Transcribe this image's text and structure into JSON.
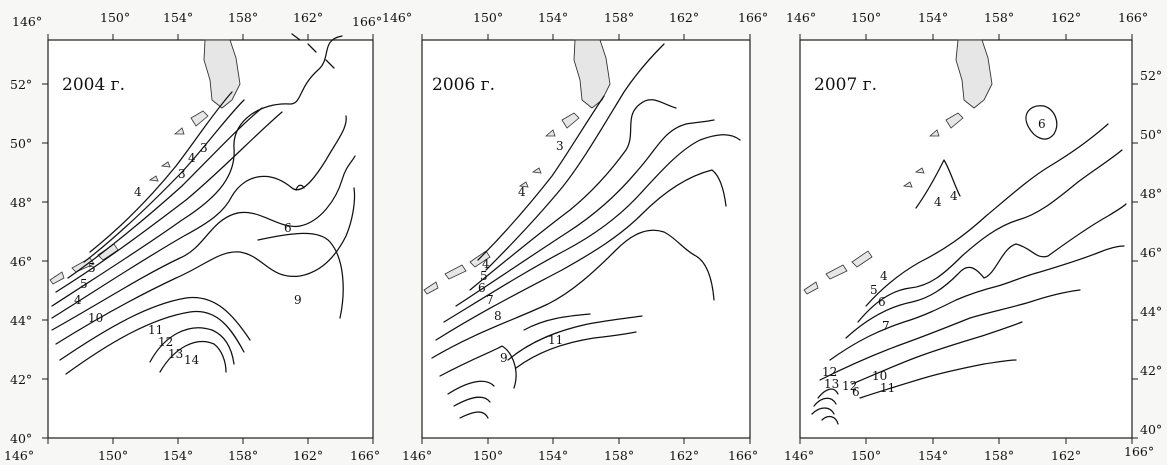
{
  "x_ticks": [
    "146°",
    "150°",
    "154°",
    "158°",
    "162°",
    "166°"
  ],
  "y_ticks": [
    "40°",
    "42°",
    "44°",
    "46°",
    "48°",
    "50°",
    "52°"
  ],
  "panels": [
    {
      "year_label": "2004 г.",
      "contour_labels": [
        "3",
        "4",
        "3",
        "4",
        "5",
        "5",
        "4",
        "10",
        "11",
        "12",
        "13",
        "14",
        "6",
        "9"
      ]
    },
    {
      "year_label": "2006 г.",
      "contour_labels": [
        "3",
        "4",
        "4",
        "5",
        "6",
        "7",
        "8",
        "9",
        "11"
      ]
    },
    {
      "year_label": "2007 г.",
      "contour_labels": [
        "4",
        "4",
        "6",
        "4",
        "5",
        "6",
        "7",
        "10",
        "11",
        "12",
        "13",
        "12",
        "6"
      ]
    }
  ]
}
